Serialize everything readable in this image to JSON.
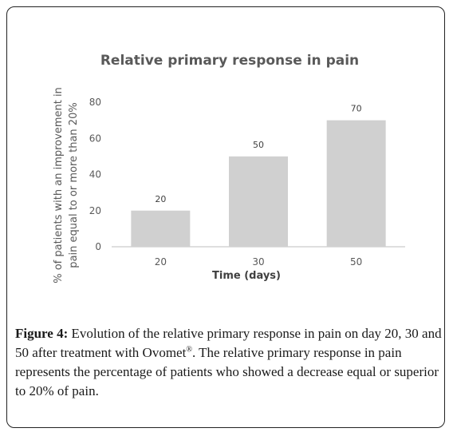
{
  "chart_data": {
    "type": "bar",
    "title": "Relative primary response  in pain",
    "categories": [
      "20",
      "30",
      "50"
    ],
    "values": [
      20,
      50,
      70
    ],
    "data_labels": [
      "20",
      "50",
      "70"
    ],
    "xlabel": "Time (days)",
    "ylabel_lines": [
      "% of patients with an improvement in",
      "pain equal to or more  than 20%"
    ],
    "ylim": [
      0,
      80
    ],
    "yticks": [
      "0",
      "20",
      "40",
      "60",
      "80"
    ],
    "bar_color": "#d0d0d0",
    "grid": false
  },
  "caption": {
    "label": "Figure 4:",
    "text_1": " Evolution of the relative primary response in pain on day 20, 30 and 50 after treatment with Ovomet",
    "superscript": "®",
    "text_2": ". The relative primary response in pain represents the percentage of patients who showed a decrease equal or superior to 20% of pain."
  }
}
